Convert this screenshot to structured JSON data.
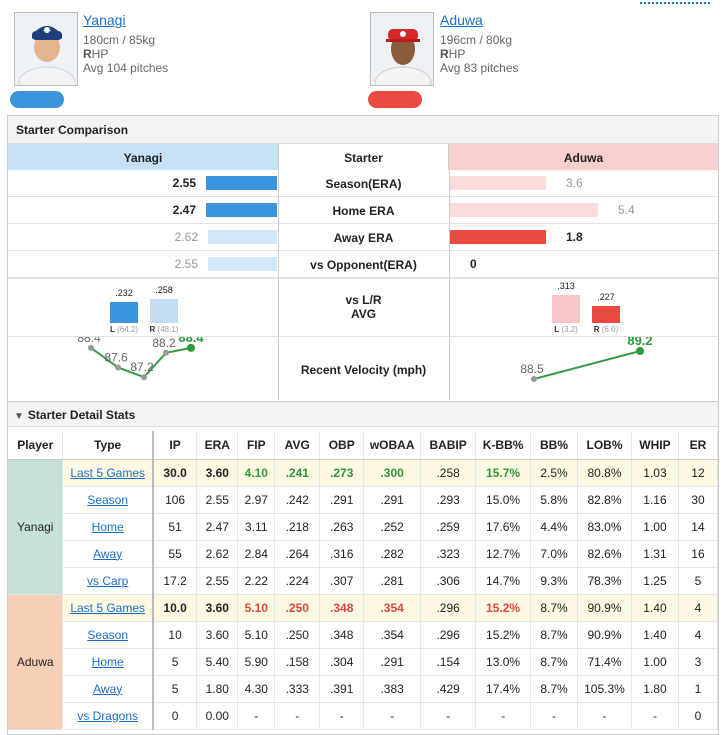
{
  "players": {
    "left": {
      "name": "Yanagi",
      "size": "180cm / 85kg",
      "hand_bold": "R",
      "hand_rest": "HP",
      "avg_pitches": "Avg 104 pitches",
      "color": "#3a95dc"
    },
    "right": {
      "name": "Aduwa",
      "size": "196cm / 80kg",
      "hand_bold": "R",
      "hand_rest": "HP",
      "avg_pitches": "Avg 83 pitches",
      "color": "#ea4a41"
    }
  },
  "starter_comparison": {
    "title": "Starter Comparison",
    "header": {
      "left": "Yanagi",
      "center": "Starter",
      "right": "Aduwa"
    },
    "rows": [
      {
        "label": "Season(ERA)",
        "left": "2.55",
        "right": "3.6",
        "left_level": 0.71,
        "right_level": 0.48,
        "left_strong": true,
        "right_strong": false
      },
      {
        "label": "Home ERA",
        "left": "2.47",
        "right": "5.4",
        "left_level": 0.71,
        "right_level": 0.74,
        "left_strong": true,
        "right_strong": false
      },
      {
        "label": "Away ERA",
        "left": "2.62",
        "right": "1.8",
        "left_level": 0.69,
        "right_level": 0.48,
        "left_strong": false,
        "right_strong": true
      },
      {
        "label": "vs Opponent(ERA)",
        "left": "2.55",
        "right": "0",
        "left_level": 0.69,
        "right_level": 0,
        "left_strong": false,
        "right_strong": true
      }
    ],
    "lr": {
      "label_line1": "vs L/R",
      "label_line2": "AVG",
      "left": {
        "L_val": ".232",
        "L_cap": "(64.2)",
        "R_val": ".258",
        "R_cap": "(48.1)",
        "L_side": "L",
        "R_side": "R"
      },
      "right": {
        "L_val": ".313",
        "L_cap": "(3.2)",
        "R_val": ".227",
        "R_cap": "(6.0)",
        "L_side": "L",
        "R_side": "R"
      }
    },
    "velocity": {
      "label": "Recent Velocity (mph)",
      "left": [
        "88.4",
        "87.6",
        "87.2",
        "88.2",
        "88.4"
      ],
      "right": [
        "88.5",
        "89.2"
      ]
    }
  },
  "detail": {
    "title": "Starter Detail Stats",
    "columns": [
      "Player",
      "Type",
      "IP",
      "ERA",
      "FIP",
      "AVG",
      "OBP",
      "wOBAA",
      "BABIP",
      "K-BB%",
      "BB%",
      "LOB%",
      "WHIP",
      "ER"
    ],
    "groups": [
      {
        "player": "Yanagi",
        "color": "#c5dfd9",
        "rows": [
          {
            "type": "Last 5 Games",
            "vals": [
              "30.0",
              "3.60",
              "4.10",
              ".241",
              ".273",
              ".300",
              ".258",
              "15.7%",
              "2.5%",
              "80.8%",
              "1.03",
              "12"
            ]
          },
          {
            "type": "Season",
            "vals": [
              "106",
              "2.55",
              "2.97",
              ".242",
              ".291",
              ".291",
              ".293",
              "15.0%",
              "5.8%",
              "82.8%",
              "1.16",
              "30"
            ]
          },
          {
            "type": "Home",
            "vals": [
              "51",
              "2.47",
              "3.11",
              ".218",
              ".263",
              ".252",
              ".259",
              "17.6%",
              "4.4%",
              "83.0%",
              "1.00",
              "14"
            ]
          },
          {
            "type": "Away",
            "vals": [
              "55",
              "2.62",
              "2.84",
              ".264",
              ".316",
              ".282",
              ".323",
              "12.7%",
              "7.0%",
              "82.6%",
              "1.31",
              "16"
            ]
          },
          {
            "type": "vs Carp",
            "vals": [
              "17.2",
              "2.55",
              "2.22",
              ".224",
              ".307",
              ".281",
              ".306",
              "14.7%",
              "9.3%",
              "78.3%",
              "1.25",
              "5"
            ]
          }
        ]
      },
      {
        "player": "Aduwa",
        "color": "#f7cfb8",
        "rows": [
          {
            "type": "Last 5 Games",
            "vals": [
              "10.0",
              "3.60",
              "5.10",
              ".250",
              ".348",
              ".354",
              ".296",
              "15.2%",
              "8.7%",
              "90.9%",
              "1.40",
              "4"
            ]
          },
          {
            "type": "Season",
            "vals": [
              "10",
              "3.60",
              "5.10",
              ".250",
              ".348",
              ".354",
              ".296",
              "15.2%",
              "8.7%",
              "90.9%",
              "1.40",
              "4"
            ]
          },
          {
            "type": "Home",
            "vals": [
              "5",
              "5.40",
              "5.90",
              ".158",
              ".304",
              ".291",
              ".154",
              "13.0%",
              "8.7%",
              "71.4%",
              "1.00",
              "3"
            ]
          },
          {
            "type": "Away",
            "vals": [
              "5",
              "1.80",
              "4.30",
              ".333",
              ".391",
              ".383",
              ".429",
              "17.4%",
              "8.7%",
              "105.3%",
              "1.80",
              "1"
            ]
          },
          {
            "type": "vs Dragons",
            "vals": [
              "0",
              "0.00",
              "-",
              "-",
              "-",
              "-",
              "-",
              "-",
              "-",
              "-",
              "-",
              "0"
            ]
          }
        ]
      }
    ]
  }
}
